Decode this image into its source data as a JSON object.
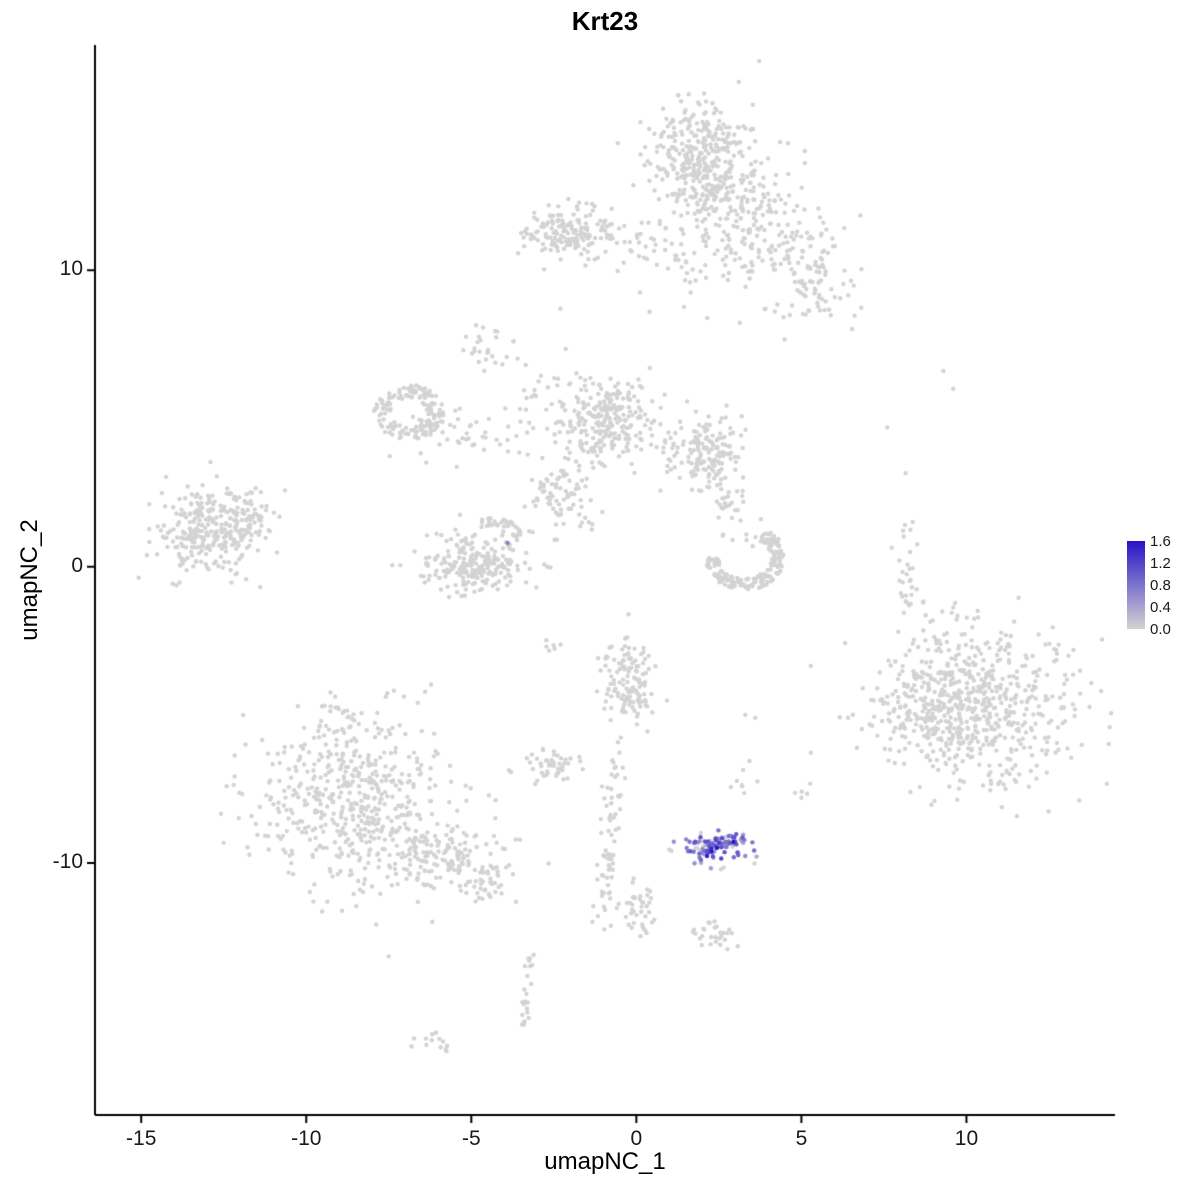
{
  "chart_data": {
    "type": "scatter",
    "title": "Krt23",
    "xlabel": "umapNC_1",
    "ylabel": "umapNC_2",
    "xlim": [
      -16.4,
      14.5
    ],
    "ylim": [
      -18.5,
      17.6
    ],
    "x_ticks": [
      -15,
      -10,
      -5,
      0,
      5,
      10
    ],
    "y_ticks": [
      -10,
      0,
      10
    ],
    "grid": false,
    "point_color_base": "#d3d3d3",
    "axis_color": "#000000",
    "legend": {
      "position": "right",
      "ticks": [
        1.6,
        1.2,
        0.8,
        0.4,
        0.0
      ],
      "vmin": 0.0,
      "vmax": 1.6,
      "color_low": "#d3d3d3",
      "color_high": "#2713c4"
    },
    "clusters_gray": [
      {
        "cx": 1.9,
        "cy": 13.8,
        "sx": 0.85,
        "sy": 0.95,
        "n": 360
      },
      {
        "cx": 3.0,
        "cy": 12.2,
        "sx": 0.7,
        "sy": 0.7,
        "n": 90
      },
      {
        "cx": 4.3,
        "cy": 10.8,
        "sx": 1.0,
        "sy": 1.0,
        "n": 160
      },
      {
        "cx": 5.4,
        "cy": 9.3,
        "sx": 0.55,
        "sy": 0.6,
        "n": 45
      },
      {
        "cx": -2.1,
        "cy": 11.3,
        "sx": 0.65,
        "sy": 0.45,
        "n": 150
      },
      {
        "cx": -0.3,
        "cy": 11.0,
        "sx": 0.8,
        "sy": 0.5,
        "n": 35
      },
      {
        "cx": 1.6,
        "cy": 10.4,
        "sx": 0.7,
        "sy": 0.7,
        "n": 40
      },
      {
        "t": "arc",
        "cx": -6.9,
        "cy": 5.2,
        "r": 0.8,
        "w": 0.5,
        "a0": 0,
        "a1": 360,
        "n": 150
      },
      {
        "cx": -5.2,
        "cy": 4.4,
        "sx": 0.8,
        "sy": 0.4,
        "n": 40
      },
      {
        "cx": -0.9,
        "cy": 4.9,
        "sx": 0.75,
        "sy": 0.75,
        "n": 280
      },
      {
        "cx": 2.1,
        "cy": 3.9,
        "sx": 0.55,
        "sy": 0.65,
        "n": 160
      },
      {
        "cx": -2.3,
        "cy": 2.5,
        "sx": 0.55,
        "sy": 0.55,
        "n": 80
      },
      {
        "cx": -4.8,
        "cy": 0.1,
        "sx": 0.85,
        "sy": 0.5,
        "n": 230
      },
      {
        "t": "arc",
        "cx": -4.3,
        "cy": 0.9,
        "r": 0.7,
        "w": 0.3,
        "a0": 10,
        "a1": 120,
        "n": 35
      },
      {
        "t": "arc",
        "cx": 3.3,
        "cy": 0.3,
        "r": 1.0,
        "w": 0.45,
        "a0": -180,
        "a1": 60,
        "n": 180
      },
      {
        "cx": 2.9,
        "cy": 1.9,
        "sx": 0.3,
        "sy": 0.5,
        "n": 30
      },
      {
        "cx": -4.6,
        "cy": 7.3,
        "sx": 0.35,
        "sy": 0.35,
        "n": 25
      },
      {
        "cx": -3.3,
        "cy": 5.9,
        "sx": 0.35,
        "sy": 0.7,
        "n": 18
      },
      {
        "cx": -13.0,
        "cy": 1.2,
        "sx": 0.85,
        "sy": 0.7,
        "n": 270
      },
      {
        "cx": -11.9,
        "cy": 1.7,
        "sx": 0.45,
        "sy": 0.45,
        "n": 60
      },
      {
        "cx": 8.2,
        "cy": 0.0,
        "sx": 0.18,
        "sy": 1.1,
        "n": 30
      },
      {
        "cx": 10.4,
        "cy": -4.7,
        "sx": 1.5,
        "sy": 1.35,
        "n": 650
      },
      {
        "cx": 8.4,
        "cy": -4.4,
        "sx": 0.5,
        "sy": 0.6,
        "n": 60
      },
      {
        "cx": -0.3,
        "cy": -3.9,
        "sx": 0.45,
        "sy": 0.7,
        "n": 130
      },
      {
        "cx": -2.6,
        "cy": -6.7,
        "sx": 0.4,
        "sy": 0.3,
        "n": 45
      },
      {
        "t": "line",
        "x0": -0.6,
        "y0": -5.8,
        "x1": -1.0,
        "y1": -12.0,
        "w": 0.15,
        "n": 70
      },
      {
        "cx": 0.2,
        "cy": -11.5,
        "sx": 0.35,
        "sy": 0.5,
        "n": 40
      },
      {
        "cx": 2.3,
        "cy": -12.4,
        "sx": 0.3,
        "sy": 0.25,
        "n": 28
      },
      {
        "cx": 3.3,
        "cy": -7.3,
        "sx": 0.25,
        "sy": 0.3,
        "n": 8
      },
      {
        "cx": 5.0,
        "cy": -7.5,
        "sx": 0.2,
        "sy": 0.2,
        "n": 5
      },
      {
        "t": "line",
        "x0": -3.1,
        "y0": -13.0,
        "x1": -3.4,
        "y1": -15.7,
        "w": 0.1,
        "n": 22
      },
      {
        "cx": -6.1,
        "cy": -16.1,
        "sx": 0.35,
        "sy": 0.18,
        "n": 13
      },
      {
        "cx": -8.6,
        "cy": -7.9,
        "sx": 1.55,
        "sy": 1.45,
        "n": 520
      },
      {
        "cx": -5.8,
        "cy": -9.8,
        "sx": 0.9,
        "sy": 0.6,
        "n": 140
      },
      {
        "cx": -4.5,
        "cy": -10.6,
        "sx": 0.4,
        "sy": 0.35,
        "n": 40
      },
      {
        "cx": -9.2,
        "cy": -5.2,
        "sx": 0.5,
        "sy": 0.5,
        "n": 30
      },
      {
        "cx": -2.4,
        "cy": -2.9,
        "sx": 0.3,
        "sy": 0.2,
        "n": 6
      },
      {
        "cx": 2.4,
        "cy": -9.5,
        "sx": 0.55,
        "sy": 0.3,
        "n": 25
      }
    ],
    "extra_gray_points": [
      [
        9.3,
        6.6
      ],
      [
        9.6,
        6.0
      ],
      [
        7.6,
        4.7
      ],
      [
        0.4,
        8.6
      ],
      [
        -2.3,
        8.7
      ],
      [
        3.3,
        -5.0
      ],
      [
        3.6,
        -5.1
      ],
      [
        8.3,
        -7.6
      ]
    ],
    "expression_cluster": {
      "cx": 2.45,
      "cy": -9.45,
      "sx": 0.5,
      "sy": 0.26,
      "n": 88,
      "vmin": 0.35,
      "vmid": 1.2,
      "n_high": 6,
      "vhigh_min": 1.25,
      "vhigh_max": 1.6
    },
    "expression_singletons": [
      {
        "x": -3.9,
        "y": 0.8,
        "v": 0.7
      }
    ],
    "point_radius_px": 2.2
  }
}
